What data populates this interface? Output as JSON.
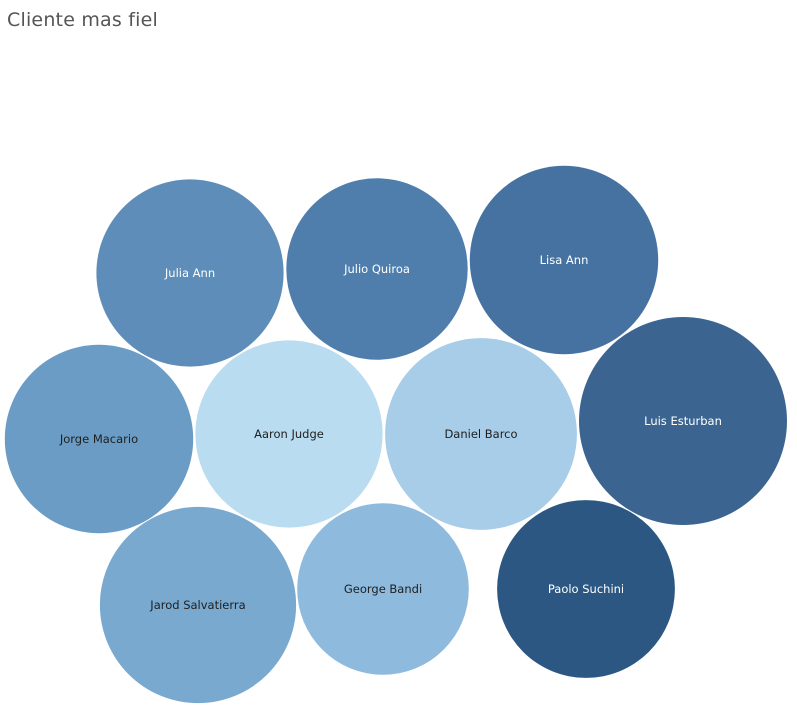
{
  "title": "Cliente mas fiel",
  "chart_data": {
    "type": "bubble",
    "title": "Cliente mas fiel",
    "color_scale": [
      "#b9dcf0",
      "#2b5782"
    ],
    "bubbles": [
      {
        "label": "Luis Esturban",
        "value": 100,
        "color": "#3b6590",
        "text_color": "#ffffff"
      },
      {
        "label": "Jarod Salvatierra",
        "value": 89,
        "color": "#7aa9d0",
        "text_color": "#1f1f1f"
      },
      {
        "label": "Lisa Ann",
        "value": 82,
        "color": "#4572a0",
        "text_color": "#ffffff"
      },
      {
        "label": "Jorge Macario",
        "value": 82,
        "color": "#6a9cc5",
        "text_color": "#1f1f1f"
      },
      {
        "label": "Julia Ann",
        "value": 81,
        "color": "#5d8db8",
        "text_color": "#ffffff"
      },
      {
        "label": "Aaron Judge",
        "value": 81,
        "color": "#b9dcf0",
        "text_color": "#1f1f1f"
      },
      {
        "label": "Daniel Barco",
        "value": 85,
        "color": "#a7cde8",
        "text_color": "#1f1f1f"
      },
      {
        "label": "Julio Quiroa",
        "value": 76,
        "color": "#4f7eac",
        "text_color": "#ffffff"
      },
      {
        "label": "Paolo Suchini",
        "value": 73,
        "color": "#2b5782",
        "text_color": "#ffffff"
      },
      {
        "label": "George Bandi",
        "value": 68,
        "color": "#8ebade",
        "text_color": "#1f1f1f"
      }
    ]
  }
}
